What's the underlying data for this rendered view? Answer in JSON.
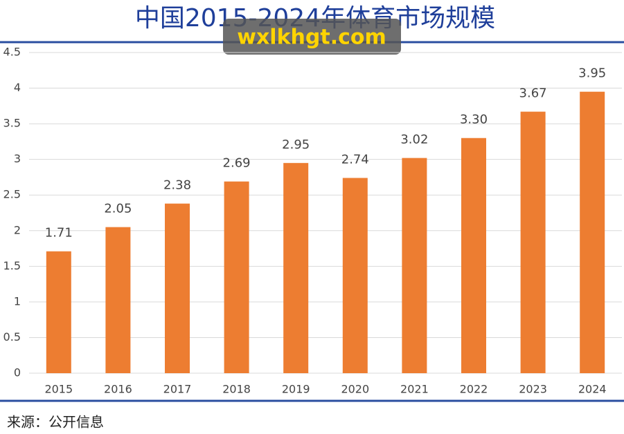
{
  "chart_data": {
    "type": "bar",
    "title": "中国2015-2024年体育市场规模",
    "watermark": "wxlkhgt.com",
    "source": "来源：公开信息",
    "categories": [
      "2015",
      "2016",
      "2017",
      "2018",
      "2019",
      "2020",
      "2021",
      "2022",
      "2023",
      "2024"
    ],
    "values": [
      1.71,
      2.05,
      2.38,
      2.69,
      2.95,
      2.74,
      3.02,
      3.3,
      3.67,
      3.95
    ],
    "value_labels": [
      "1.71",
      "2.05",
      "2.38",
      "2.69",
      "2.95",
      "2.74",
      "3.02",
      "3.30",
      "3.67",
      "3.95"
    ],
    "color": "#ed7d31",
    "ylim": [
      0,
      4.5
    ],
    "yticks": [
      0,
      0.5,
      1,
      1.5,
      2,
      2.5,
      3,
      3.5,
      4,
      4.5
    ],
    "grid": true
  }
}
